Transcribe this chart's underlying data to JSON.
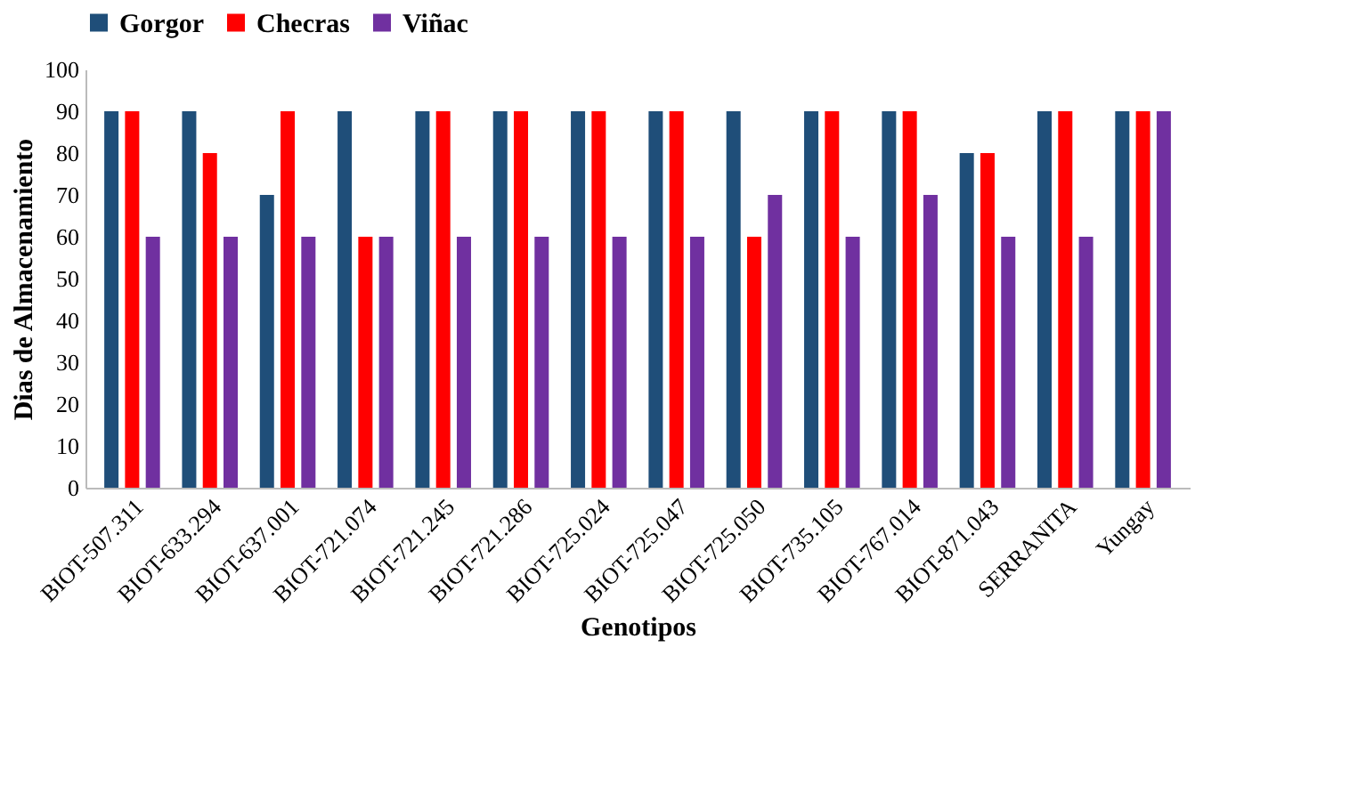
{
  "chart_data": {
    "type": "bar",
    "xlabel": "Genotipos",
    "ylabel": "Dias de Almacenamiento",
    "categories": [
      "BIOT-507.311",
      "BIOT-633.294",
      "BIOT-637.001",
      "BIOT-721.074",
      "BIOT-721.245",
      "BIOT-721.286",
      "BIOT-725.024",
      "BIOT-725.047",
      "BIOT-725.050",
      "BIOT-735.105",
      "BIOT-767.014",
      "BIOT-871.043",
      "SERRANITA",
      "Yungay"
    ],
    "series": [
      {
        "name": "Gorgor",
        "color": "#1f4e79",
        "values": [
          90,
          90,
          70,
          90,
          90,
          90,
          90,
          90,
          90,
          90,
          90,
          80,
          90,
          90
        ]
      },
      {
        "name": "Checras",
        "color": "#ff0000",
        "values": [
          90,
          80,
          90,
          60,
          90,
          90,
          90,
          90,
          60,
          90,
          90,
          80,
          90,
          90
        ]
      },
      {
        "name": "Viñac",
        "color": "#7030a0",
        "values": [
          60,
          60,
          60,
          60,
          60,
          60,
          60,
          60,
          70,
          60,
          70,
          60,
          60,
          90
        ]
      }
    ],
    "ylim": [
      0,
      100
    ],
    "yticks": [
      0,
      10,
      20,
      30,
      40,
      50,
      60,
      70,
      80,
      90,
      100
    ],
    "grid": false,
    "legend": "top"
  }
}
